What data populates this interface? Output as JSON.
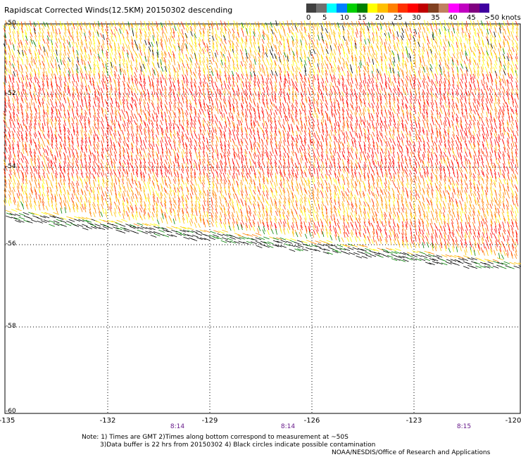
{
  "title": "Rapidscat Corrected Winds(12.5KM) 20150302 descending",
  "legend": {
    "ticks": [
      "0",
      "5",
      "10",
      "15",
      "20",
      "25",
      "30",
      "35",
      "40",
      "45"
    ],
    "units": ">50 knots",
    "colors": [
      "#404040",
      "#707070",
      "#00ffff",
      "#0080ff",
      "#00d000",
      "#008000",
      "#ffff00",
      "#ffc000",
      "#ff8000",
      "#ff3000",
      "#ff0000",
      "#c00000",
      "#804020",
      "#c08060",
      "#ff00ff",
      "#c000c0",
      "#800080",
      "#4000a0"
    ]
  },
  "map": {
    "lat_labels": [
      "-50",
      "-52",
      "-54",
      "-56",
      "-58",
      "-60"
    ],
    "lon_labels": [
      "-135",
      "-132",
      "-129",
      "-126",
      "-123",
      "-120"
    ],
    "time_labels": [
      "8:14",
      "8:14",
      "8:15"
    ],
    "lat_range": [
      -60,
      -50
    ],
    "lon_range": [
      -135,
      -120
    ],
    "swath_color_scheme": [
      "#ff0000",
      "#ff3000",
      "#ff8000",
      "#ffc000",
      "#ffff00",
      "#008000",
      "#000000"
    ]
  },
  "notes": {
    "line1": "Note: 1) Times are GMT 2)Times along bottom correspond to measurement at ~50S",
    "line2": "3)Data buffer is 22 hrs from 20150302 4) Black circles indicate possible contamination",
    "credit": "NOAA/NESDIS/Office of Research and Applications"
  }
}
